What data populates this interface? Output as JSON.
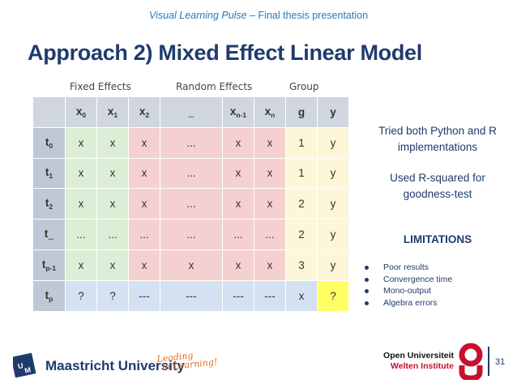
{
  "header": {
    "italic": "Visual Learning Pulse",
    "rest": " – Final thesis presentation"
  },
  "title": "Approach 2) Mixed Effect Linear Model",
  "labels": {
    "fixed": "Fixed Effects",
    "random": "Random Effects",
    "group": "Group"
  },
  "side": {
    "line1": "Tried both Python and R implementations",
    "line2": "Used R-squared for goodness-test",
    "line3": "LIMITATIONS"
  },
  "limitations": [
    "Poor results",
    "Convergence time",
    "Mono-output",
    "Algebra errors"
  ],
  "footer": {
    "university": "Maastricht University",
    "slogan1": "Leading",
    "slogan2": "in Learning!",
    "ou1": "Open Universiteit",
    "ou2": "Welten Institute",
    "page": "31"
  },
  "table": {
    "header": [
      "x",
      "0",
      "x",
      "1",
      "x",
      "2",
      "...",
      "x",
      "n-1",
      "x",
      "n",
      "g",
      "y"
    ],
    "rows": [
      [
        "t",
        "0",
        "x",
        "x",
        "x",
        "...",
        "x",
        "x",
        "1",
        "y"
      ],
      [
        "t",
        "1",
        "x",
        "x",
        "x",
        "...",
        "x",
        "x",
        "1",
        "y"
      ],
      [
        "t",
        "2",
        "x",
        "x",
        "x",
        "...",
        "x",
        "x",
        "2",
        "y"
      ],
      [
        "t",
        "...",
        "...",
        "...",
        "...",
        "...",
        "...",
        "...",
        "2",
        "y"
      ],
      [
        "t",
        "p-1",
        "x",
        "x",
        "x",
        "x",
        "x",
        "x",
        "3",
        "y"
      ],
      [
        "t",
        "p",
        "?",
        "?",
        "---",
        "---",
        "---",
        "---",
        "x",
        "?"
      ]
    ]
  }
}
